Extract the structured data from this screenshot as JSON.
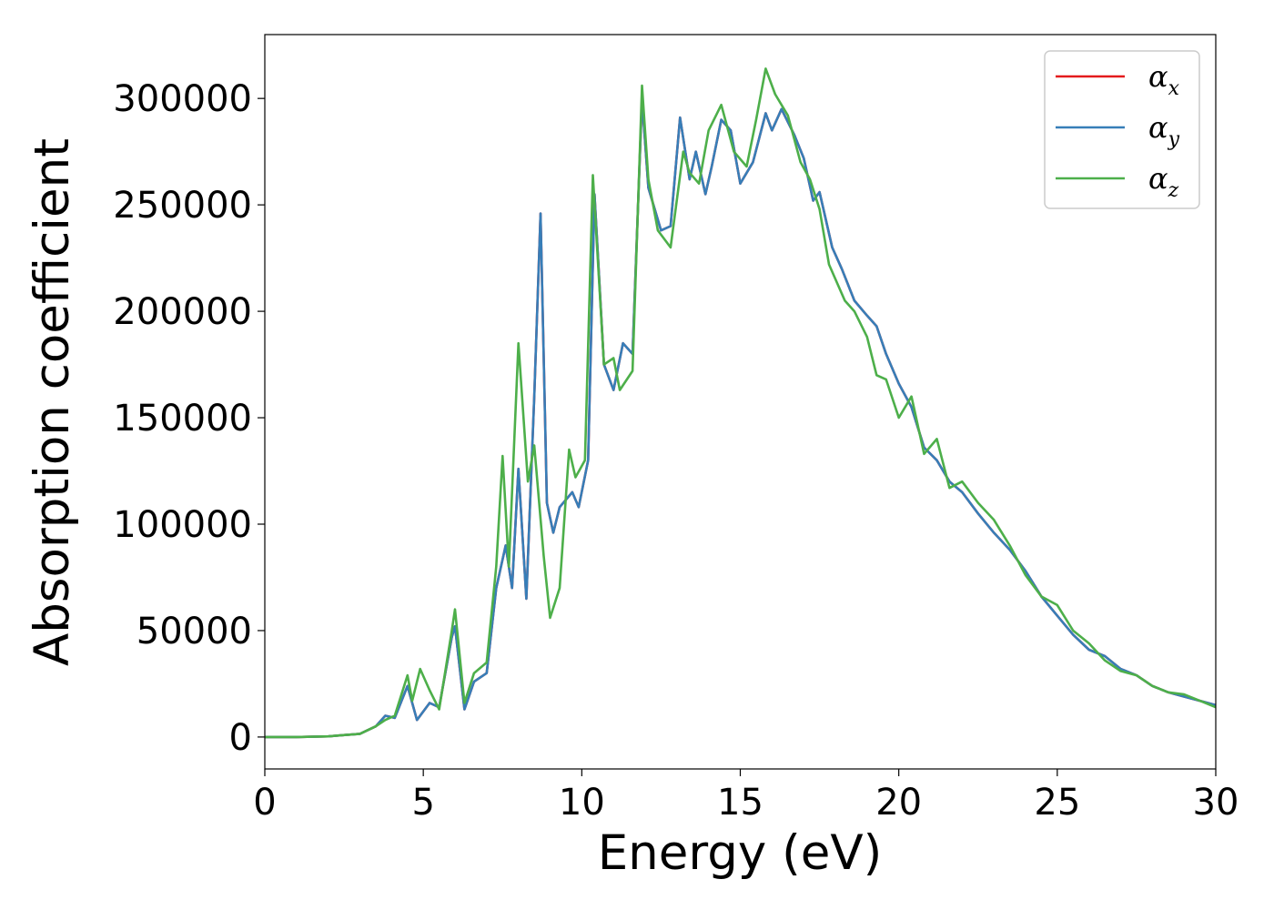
{
  "chart_data": {
    "type": "line",
    "title": "",
    "xlabel": "Energy (eV)",
    "ylabel": "Absorption coefficient",
    "xlim": [
      0,
      30
    ],
    "ylim": [
      -15000,
      330000
    ],
    "xticks": [
      0,
      5,
      10,
      15,
      20,
      25,
      30
    ],
    "yticks": [
      0,
      50000,
      100000,
      150000,
      200000,
      250000,
      300000
    ],
    "xtick_labels": [
      "0",
      "5",
      "10",
      "15",
      "20",
      "25",
      "30"
    ],
    "ytick_labels": [
      "0",
      "50000",
      "100000",
      "150000",
      "200000",
      "250000",
      "300000"
    ],
    "grid": false,
    "legend_position": "top-right",
    "series": [
      {
        "name": "αx",
        "symbol": "α",
        "subscript": "x",
        "color": "#e41a1c",
        "points": [
          [
            0,
            0
          ],
          [
            1,
            0
          ],
          [
            2,
            300
          ],
          [
            3,
            1500
          ],
          [
            3.5,
            5000
          ],
          [
            3.8,
            10000
          ],
          [
            4.1,
            9000
          ],
          [
            4.5,
            24000
          ],
          [
            4.8,
            8000
          ],
          [
            5.2,
            16000
          ],
          [
            5.5,
            14000
          ],
          [
            5.9,
            47000
          ],
          [
            6.0,
            52000
          ],
          [
            6.3,
            13000
          ],
          [
            6.6,
            26000
          ],
          [
            7.0,
            30000
          ],
          [
            7.3,
            70000
          ],
          [
            7.6,
            90000
          ],
          [
            7.8,
            70000
          ],
          [
            8.0,
            126000
          ],
          [
            8.25,
            65000
          ],
          [
            8.5,
            160000
          ],
          [
            8.7,
            246000
          ],
          [
            8.9,
            110000
          ],
          [
            9.1,
            96000
          ],
          [
            9.3,
            108000
          ],
          [
            9.7,
            115000
          ],
          [
            9.9,
            108000
          ],
          [
            10.2,
            130000
          ],
          [
            10.4,
            255000
          ],
          [
            10.7,
            175000
          ],
          [
            11.0,
            163000
          ],
          [
            11.3,
            185000
          ],
          [
            11.6,
            180000
          ],
          [
            11.9,
            300000
          ],
          [
            12.1,
            258000
          ],
          [
            12.5,
            238000
          ],
          [
            12.8,
            240000
          ],
          [
            13.1,
            291000
          ],
          [
            13.4,
            262000
          ],
          [
            13.6,
            275000
          ],
          [
            13.9,
            255000
          ],
          [
            14.1,
            268000
          ],
          [
            14.4,
            290000
          ],
          [
            14.7,
            285000
          ],
          [
            15.0,
            260000
          ],
          [
            15.4,
            270000
          ],
          [
            15.8,
            293000
          ],
          [
            16.0,
            285000
          ],
          [
            16.3,
            295000
          ],
          [
            16.7,
            283000
          ],
          [
            17.0,
            272000
          ],
          [
            17.3,
            252000
          ],
          [
            17.5,
            256000
          ],
          [
            17.9,
            230000
          ],
          [
            18.2,
            220000
          ],
          [
            18.6,
            205000
          ],
          [
            19.0,
            198000
          ],
          [
            19.3,
            193000
          ],
          [
            19.6,
            180000
          ],
          [
            20.0,
            166000
          ],
          [
            20.4,
            155000
          ],
          [
            20.8,
            136000
          ],
          [
            21.2,
            130000
          ],
          [
            21.6,
            120000
          ],
          [
            22.0,
            115000
          ],
          [
            22.5,
            105000
          ],
          [
            23.0,
            96000
          ],
          [
            23.5,
            88000
          ],
          [
            24.0,
            78000
          ],
          [
            24.5,
            66000
          ],
          [
            25.0,
            57000
          ],
          [
            25.5,
            48000
          ],
          [
            26.0,
            41000
          ],
          [
            26.5,
            38000
          ],
          [
            27.0,
            32000
          ],
          [
            27.5,
            29000
          ],
          [
            28.0,
            24000
          ],
          [
            28.5,
            21000
          ],
          [
            29.0,
            19000
          ],
          [
            29.5,
            17000
          ],
          [
            30.0,
            15000
          ]
        ]
      },
      {
        "name": "αy",
        "symbol": "α",
        "subscript": "y",
        "color": "#377eb8",
        "points": [
          [
            0,
            0
          ],
          [
            1,
            0
          ],
          [
            2,
            300
          ],
          [
            3,
            1500
          ],
          [
            3.5,
            5000
          ],
          [
            3.8,
            10000
          ],
          [
            4.1,
            9000
          ],
          [
            4.5,
            24000
          ],
          [
            4.8,
            8000
          ],
          [
            5.2,
            16000
          ],
          [
            5.5,
            14000
          ],
          [
            5.9,
            47000
          ],
          [
            6.0,
            52000
          ],
          [
            6.3,
            13000
          ],
          [
            6.6,
            26000
          ],
          [
            7.0,
            30000
          ],
          [
            7.3,
            70000
          ],
          [
            7.6,
            90000
          ],
          [
            7.8,
            70000
          ],
          [
            8.0,
            126000
          ],
          [
            8.25,
            65000
          ],
          [
            8.5,
            160000
          ],
          [
            8.7,
            246000
          ],
          [
            8.9,
            110000
          ],
          [
            9.1,
            96000
          ],
          [
            9.3,
            108000
          ],
          [
            9.7,
            115000
          ],
          [
            9.9,
            108000
          ],
          [
            10.2,
            130000
          ],
          [
            10.4,
            255000
          ],
          [
            10.7,
            175000
          ],
          [
            11.0,
            163000
          ],
          [
            11.3,
            185000
          ],
          [
            11.6,
            180000
          ],
          [
            11.9,
            300000
          ],
          [
            12.1,
            258000
          ],
          [
            12.5,
            238000
          ],
          [
            12.8,
            240000
          ],
          [
            13.1,
            291000
          ],
          [
            13.4,
            262000
          ],
          [
            13.6,
            275000
          ],
          [
            13.9,
            255000
          ],
          [
            14.1,
            268000
          ],
          [
            14.4,
            290000
          ],
          [
            14.7,
            285000
          ],
          [
            15.0,
            260000
          ],
          [
            15.4,
            270000
          ],
          [
            15.8,
            293000
          ],
          [
            16.0,
            285000
          ],
          [
            16.3,
            295000
          ],
          [
            16.7,
            283000
          ],
          [
            17.0,
            272000
          ],
          [
            17.3,
            252000
          ],
          [
            17.5,
            256000
          ],
          [
            17.9,
            230000
          ],
          [
            18.2,
            220000
          ],
          [
            18.6,
            205000
          ],
          [
            19.0,
            198000
          ],
          [
            19.3,
            193000
          ],
          [
            19.6,
            180000
          ],
          [
            20.0,
            166000
          ],
          [
            20.4,
            155000
          ],
          [
            20.8,
            136000
          ],
          [
            21.2,
            130000
          ],
          [
            21.6,
            120000
          ],
          [
            22.0,
            115000
          ],
          [
            22.5,
            105000
          ],
          [
            23.0,
            96000
          ],
          [
            23.5,
            88000
          ],
          [
            24.0,
            78000
          ],
          [
            24.5,
            66000
          ],
          [
            25.0,
            57000
          ],
          [
            25.5,
            48000
          ],
          [
            26.0,
            41000
          ],
          [
            26.5,
            38000
          ],
          [
            27.0,
            32000
          ],
          [
            27.5,
            29000
          ],
          [
            28.0,
            24000
          ],
          [
            28.5,
            21000
          ],
          [
            29.0,
            19000
          ],
          [
            29.5,
            17000
          ],
          [
            30.0,
            15000
          ]
        ]
      },
      {
        "name": "αz",
        "symbol": "α",
        "subscript": "z",
        "color": "#4daf4a",
        "points": [
          [
            0,
            0
          ],
          [
            1,
            0
          ],
          [
            2,
            300
          ],
          [
            3,
            1500
          ],
          [
            3.5,
            5000
          ],
          [
            3.8,
            8000
          ],
          [
            4.1,
            10000
          ],
          [
            4.5,
            29000
          ],
          [
            4.65,
            17000
          ],
          [
            4.9,
            32000
          ],
          [
            5.2,
            22000
          ],
          [
            5.5,
            13000
          ],
          [
            5.9,
            50000
          ],
          [
            6.0,
            60000
          ],
          [
            6.3,
            16000
          ],
          [
            6.6,
            30000
          ],
          [
            7.0,
            35000
          ],
          [
            7.3,
            80000
          ],
          [
            7.5,
            132000
          ],
          [
            7.7,
            80000
          ],
          [
            8.0,
            185000
          ],
          [
            8.3,
            120000
          ],
          [
            8.5,
            137000
          ],
          [
            8.8,
            85000
          ],
          [
            9.0,
            56000
          ],
          [
            9.3,
            70000
          ],
          [
            9.6,
            135000
          ],
          [
            9.8,
            122000
          ],
          [
            10.1,
            130000
          ],
          [
            10.35,
            264000
          ],
          [
            10.7,
            175000
          ],
          [
            11.0,
            178000
          ],
          [
            11.2,
            163000
          ],
          [
            11.6,
            172000
          ],
          [
            11.9,
            306000
          ],
          [
            12.1,
            262000
          ],
          [
            12.4,
            238000
          ],
          [
            12.8,
            230000
          ],
          [
            13.2,
            275000
          ],
          [
            13.4,
            265000
          ],
          [
            13.7,
            260000
          ],
          [
            14.0,
            285000
          ],
          [
            14.4,
            297000
          ],
          [
            14.8,
            275000
          ],
          [
            15.2,
            268000
          ],
          [
            15.5,
            290000
          ],
          [
            15.8,
            314000
          ],
          [
            16.1,
            302000
          ],
          [
            16.5,
            292000
          ],
          [
            16.9,
            270000
          ],
          [
            17.2,
            262000
          ],
          [
            17.5,
            248000
          ],
          [
            17.8,
            222000
          ],
          [
            18.3,
            205000
          ],
          [
            18.6,
            200000
          ],
          [
            19.0,
            188000
          ],
          [
            19.3,
            170000
          ],
          [
            19.6,
            168000
          ],
          [
            20.0,
            150000
          ],
          [
            20.4,
            160000
          ],
          [
            20.8,
            133000
          ],
          [
            21.2,
            140000
          ],
          [
            21.6,
            117000
          ],
          [
            22.0,
            120000
          ],
          [
            22.5,
            110000
          ],
          [
            23.0,
            102000
          ],
          [
            23.5,
            90000
          ],
          [
            24.0,
            76000
          ],
          [
            24.5,
            66000
          ],
          [
            25.0,
            62000
          ],
          [
            25.5,
            50000
          ],
          [
            26.0,
            44000
          ],
          [
            26.5,
            36000
          ],
          [
            27.0,
            31000
          ],
          [
            27.5,
            29000
          ],
          [
            28.0,
            24000
          ],
          [
            28.5,
            21000
          ],
          [
            29.0,
            20000
          ],
          [
            29.5,
            17000
          ],
          [
            30.0,
            14000
          ]
        ]
      }
    ]
  }
}
